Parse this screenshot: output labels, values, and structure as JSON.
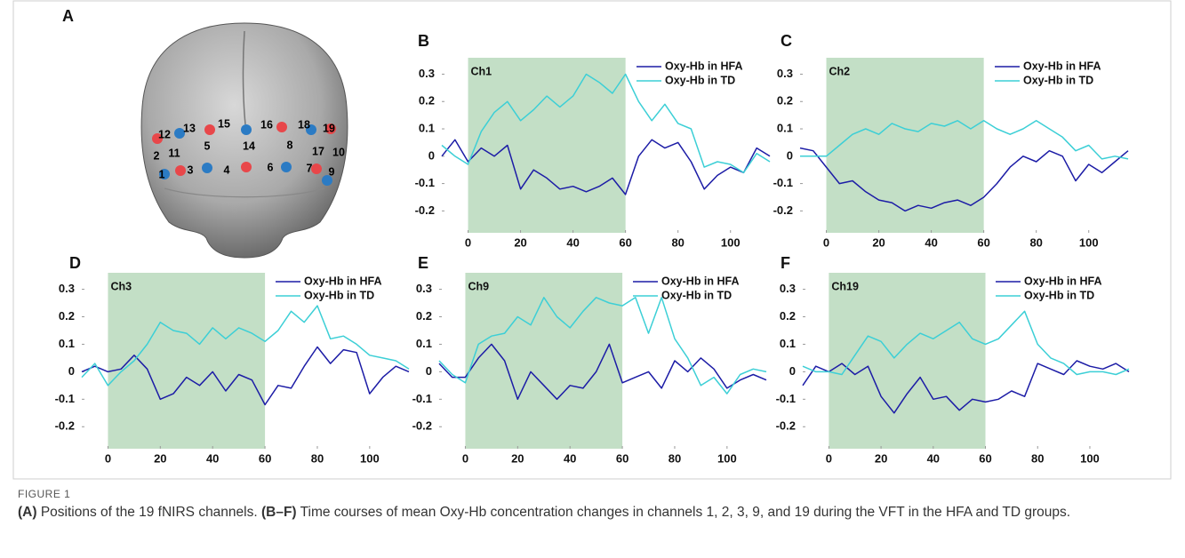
{
  "panel_a": {
    "label": "A",
    "channel_labels": [
      "1",
      "2",
      "3",
      "4",
      "5",
      "6",
      "7",
      "8",
      "9",
      "10",
      "11",
      "12",
      "13",
      "14",
      "15",
      "16",
      "17",
      "18",
      "19"
    ]
  },
  "chart_data": [
    {
      "type": "line",
      "panel": "B",
      "annotation": "Ch1",
      "x": [
        -10,
        -5,
        0,
        5,
        10,
        15,
        20,
        25,
        30,
        35,
        40,
        45,
        50,
        55,
        60,
        65,
        70,
        75,
        80,
        85,
        90,
        95,
        100,
        105,
        110,
        115
      ],
      "xlim": [
        -10,
        115
      ],
      "ylim": [
        -0.28,
        0.36
      ],
      "xticks": [
        0,
        20,
        40,
        60,
        80,
        100
      ],
      "yticks": [
        -0.2,
        -0.1,
        0,
        0.1,
        0.2,
        0.3
      ],
      "shaded_x": [
        0,
        60
      ],
      "shade_color": "#c3dfc6",
      "series": [
        {
          "name": "Oxy-Hb in HFA",
          "color": "#1c1ca6",
          "values": [
            0.0,
            0.06,
            -0.02,
            0.03,
            0.0,
            0.04,
            -0.12,
            -0.05,
            -0.08,
            -0.12,
            -0.11,
            -0.13,
            -0.11,
            -0.08,
            -0.14,
            0.0,
            0.06,
            0.03,
            0.05,
            -0.02,
            -0.12,
            -0.07,
            -0.04,
            -0.06,
            0.03,
            0.0
          ]
        },
        {
          "name": "Oxy-Hb in TD",
          "color": "#3ccfd6",
          "values": [
            0.04,
            0.0,
            -0.03,
            0.09,
            0.16,
            0.2,
            0.13,
            0.17,
            0.22,
            0.18,
            0.22,
            0.3,
            0.27,
            0.23,
            0.3,
            0.2,
            0.13,
            0.19,
            0.12,
            0.1,
            -0.04,
            -0.02,
            -0.03,
            -0.06,
            0.01,
            -0.02
          ]
        }
      ]
    },
    {
      "type": "line",
      "panel": "C",
      "annotation": "Ch2",
      "x": [
        -10,
        -5,
        0,
        5,
        10,
        15,
        20,
        25,
        30,
        35,
        40,
        45,
        50,
        55,
        60,
        65,
        70,
        75,
        80,
        85,
        90,
        95,
        100,
        105,
        110,
        115
      ],
      "xlim": [
        -10,
        115
      ],
      "ylim": [
        -0.28,
        0.36
      ],
      "xticks": [
        0,
        20,
        40,
        60,
        80,
        100
      ],
      "yticks": [
        -0.2,
        -0.1,
        0,
        0.1,
        0.2,
        0.3
      ],
      "shaded_x": [
        0,
        60
      ],
      "shade_color": "#c3dfc6",
      "series": [
        {
          "name": "Oxy-Hb in HFA",
          "color": "#1c1ca6",
          "values": [
            0.03,
            0.02,
            -0.04,
            -0.1,
            -0.09,
            -0.13,
            -0.16,
            -0.17,
            -0.2,
            -0.18,
            -0.19,
            -0.17,
            -0.16,
            -0.18,
            -0.15,
            -0.1,
            -0.04,
            0.0,
            -0.02,
            0.02,
            0.0,
            -0.09,
            -0.03,
            -0.06,
            -0.02,
            0.02
          ]
        },
        {
          "name": "Oxy-Hb in TD",
          "color": "#3ccfd6",
          "values": [
            0.0,
            0.0,
            0.0,
            0.04,
            0.08,
            0.1,
            0.08,
            0.12,
            0.1,
            0.09,
            0.12,
            0.11,
            0.13,
            0.1,
            0.13,
            0.1,
            0.08,
            0.1,
            0.13,
            0.1,
            0.07,
            0.02,
            0.04,
            -0.01,
            0.0,
            -0.01
          ]
        }
      ]
    },
    {
      "type": "line",
      "panel": "D",
      "annotation": "Ch3",
      "x": [
        -10,
        -5,
        0,
        5,
        10,
        15,
        20,
        25,
        30,
        35,
        40,
        45,
        50,
        55,
        60,
        65,
        70,
        75,
        80,
        85,
        90,
        95,
        100,
        105,
        110,
        115
      ],
      "xlim": [
        -10,
        115
      ],
      "ylim": [
        -0.28,
        0.36
      ],
      "xticks": [
        0,
        20,
        40,
        60,
        80,
        100
      ],
      "yticks": [
        -0.2,
        -0.1,
        0,
        0.1,
        0.2,
        0.3
      ],
      "shaded_x": [
        0,
        60
      ],
      "shade_color": "#c3dfc6",
      "series": [
        {
          "name": "Oxy-Hb in HFA",
          "color": "#1c1ca6",
          "values": [
            0.0,
            0.02,
            0.0,
            0.01,
            0.06,
            0.01,
            -0.1,
            -0.08,
            -0.02,
            -0.05,
            0.0,
            -0.07,
            -0.01,
            -0.03,
            -0.12,
            -0.05,
            -0.06,
            0.02,
            0.09,
            0.03,
            0.08,
            0.07,
            -0.08,
            -0.02,
            0.02,
            0.0
          ]
        },
        {
          "name": "Oxy-Hb in TD",
          "color": "#3ccfd6",
          "values": [
            -0.02,
            0.03,
            -0.05,
            0.0,
            0.04,
            0.1,
            0.18,
            0.15,
            0.14,
            0.1,
            0.16,
            0.12,
            0.16,
            0.14,
            0.11,
            0.15,
            0.22,
            0.18,
            0.24,
            0.12,
            0.13,
            0.1,
            0.06,
            0.05,
            0.04,
            0.01
          ]
        }
      ]
    },
    {
      "type": "line",
      "panel": "E",
      "annotation": "Ch9",
      "x": [
        -10,
        -5,
        0,
        5,
        10,
        15,
        20,
        25,
        30,
        35,
        40,
        45,
        50,
        55,
        60,
        65,
        70,
        75,
        80,
        85,
        90,
        95,
        100,
        105,
        110,
        115
      ],
      "xlim": [
        -10,
        115
      ],
      "ylim": [
        -0.28,
        0.36
      ],
      "xticks": [
        0,
        20,
        40,
        60,
        80,
        100
      ],
      "yticks": [
        -0.2,
        -0.1,
        0,
        0.1,
        0.2,
        0.3
      ],
      "shaded_x": [
        0,
        60
      ],
      "shade_color": "#c3dfc6",
      "series": [
        {
          "name": "Oxy-Hb in HFA",
          "color": "#1c1ca6",
          "values": [
            0.03,
            -0.02,
            -0.02,
            0.05,
            0.1,
            0.04,
            -0.1,
            0.0,
            -0.05,
            -0.1,
            -0.05,
            -0.06,
            0.0,
            0.1,
            -0.04,
            -0.02,
            0.0,
            -0.06,
            0.04,
            0.0,
            0.05,
            0.01,
            -0.06,
            -0.03,
            -0.01,
            -0.03
          ]
        },
        {
          "name": "Oxy-Hb in TD",
          "color": "#3ccfd6",
          "values": [
            0.04,
            -0.01,
            -0.04,
            0.1,
            0.13,
            0.14,
            0.2,
            0.17,
            0.27,
            0.2,
            0.16,
            0.22,
            0.27,
            0.25,
            0.24,
            0.27,
            0.14,
            0.27,
            0.12,
            0.05,
            -0.05,
            -0.02,
            -0.08,
            -0.01,
            0.01,
            0.0
          ]
        }
      ]
    },
    {
      "type": "line",
      "panel": "F",
      "annotation": "Ch19",
      "x": [
        -10,
        -5,
        0,
        5,
        10,
        15,
        20,
        25,
        30,
        35,
        40,
        45,
        50,
        55,
        60,
        65,
        70,
        75,
        80,
        85,
        90,
        95,
        100,
        105,
        110,
        115
      ],
      "xlim": [
        -10,
        115
      ],
      "ylim": [
        -0.28,
        0.36
      ],
      "xticks": [
        0,
        20,
        40,
        60,
        80,
        100
      ],
      "yticks": [
        -0.2,
        -0.1,
        0,
        0.1,
        0.2,
        0.3
      ],
      "shaded_x": [
        0,
        60
      ],
      "shade_color": "#c3dfc6",
      "series": [
        {
          "name": "Oxy-Hb in HFA",
          "color": "#1c1ca6",
          "values": [
            -0.05,
            0.02,
            0.0,
            0.03,
            -0.01,
            0.02,
            -0.09,
            -0.15,
            -0.08,
            -0.02,
            -0.1,
            -0.09,
            -0.14,
            -0.1,
            -0.11,
            -0.1,
            -0.07,
            -0.09,
            0.03,
            0.01,
            -0.01,
            0.04,
            0.02,
            0.01,
            0.03,
            0.0
          ]
        },
        {
          "name": "Oxy-Hb in TD",
          "color": "#3ccfd6",
          "values": [
            0.02,
            0.0,
            0.0,
            -0.01,
            0.06,
            0.13,
            0.11,
            0.05,
            0.1,
            0.14,
            0.12,
            0.15,
            0.18,
            0.12,
            0.1,
            0.12,
            0.17,
            0.22,
            0.1,
            0.05,
            0.03,
            -0.01,
            0.0,
            0.0,
            -0.01,
            0.01
          ]
        }
      ]
    }
  ],
  "figure": {
    "label": "FIGURE 1",
    "caption": [
      {
        "text": "(A)",
        "bold": true
      },
      {
        "text": " Positions of the 19 fNIRS channels. ",
        "bold": false
      },
      {
        "text": "(B–F)",
        "bold": true
      },
      {
        "text": " Time courses of mean Oxy-Hb concentration changes in channels 1, 2, 3, 9, and 19 during the VFT in the HFA and TD groups.",
        "bold": false
      }
    ]
  }
}
